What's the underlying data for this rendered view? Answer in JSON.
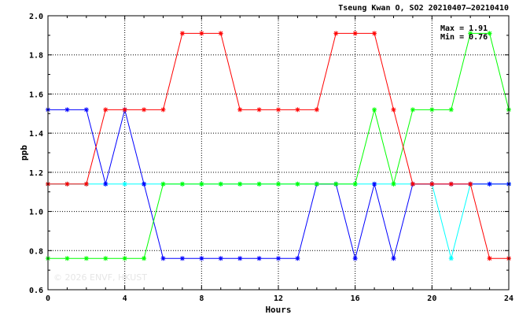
{
  "chart_data": {
    "type": "line",
    "title": "Tseung Kwan O, SO2 20210407–20210410",
    "xlabel": "Hours",
    "ylabel": "ppb",
    "xlim": [
      0,
      24
    ],
    "ylim": [
      0.6,
      2.0
    ],
    "xticks": [
      0,
      4,
      8,
      12,
      16,
      20,
      24
    ],
    "yticks": [
      0.6,
      0.8,
      1.0,
      1.2,
      1.4,
      1.6,
      1.8,
      2.0
    ],
    "ytick_labels": [
      "0.6",
      "0.8",
      "1.0",
      "1.2",
      "1.4",
      "1.6",
      "1.8",
      "2.0"
    ],
    "grid": true,
    "max_label": "Max = 1.91",
    "min_label": "Min = 0.76",
    "watermark": "© 2026  ENVF, HKUST",
    "x": [
      0,
      1,
      2,
      3,
      4,
      5,
      6,
      7,
      8,
      9,
      10,
      11,
      12,
      13,
      14,
      15,
      16,
      17,
      18,
      19,
      20,
      21,
      22,
      23,
      24
    ],
    "series": [
      {
        "color": "#00ffff",
        "values": [
          1.14,
          1.14,
          1.14,
          1.14,
          1.14,
          1.14,
          1.14,
          1.14,
          1.14,
          1.14,
          1.14,
          1.14,
          1.14,
          1.14,
          1.14,
          1.14,
          1.14,
          1.14,
          1.14,
          1.14,
          1.14,
          0.76,
          1.14,
          1.14,
          1.14
        ]
      },
      {
        "color": "#0000ff",
        "values": [
          1.52,
          1.52,
          1.52,
          1.14,
          1.52,
          1.14,
          0.76,
          0.76,
          0.76,
          0.76,
          0.76,
          0.76,
          0.76,
          0.76,
          1.14,
          1.14,
          0.76,
          1.14,
          0.76,
          1.14,
          1.14,
          1.14,
          1.14,
          1.14,
          1.14
        ]
      },
      {
        "color": "#00ff00",
        "values": [
          0.76,
          0.76,
          0.76,
          0.76,
          0.76,
          0.76,
          1.14,
          1.14,
          1.14,
          1.14,
          1.14,
          1.14,
          1.14,
          1.14,
          1.14,
          1.14,
          1.14,
          1.52,
          1.14,
          1.52,
          1.52,
          1.52,
          1.91,
          1.91,
          1.52
        ]
      },
      {
        "color": "#ff0000",
        "values": [
          1.14,
          1.14,
          1.14,
          1.52,
          1.52,
          1.52,
          1.52,
          1.91,
          1.91,
          1.91,
          1.52,
          1.52,
          1.52,
          1.52,
          1.52,
          1.91,
          1.91,
          1.91,
          1.52,
          1.14,
          1.14,
          1.14,
          1.14,
          0.76,
          0.76
        ]
      }
    ]
  }
}
